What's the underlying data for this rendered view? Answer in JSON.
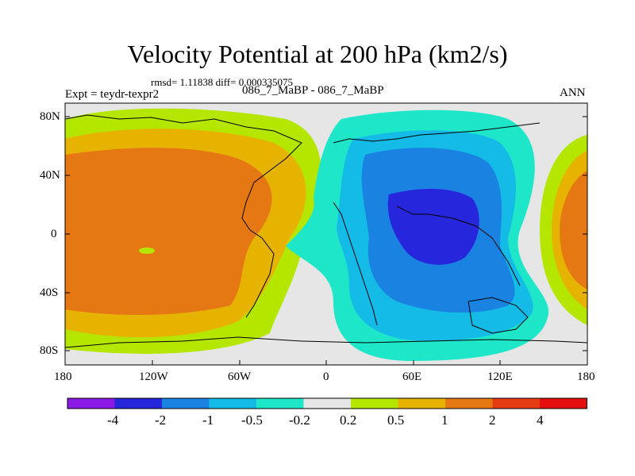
{
  "title": "Velocity Potential at 200 hPa (km2/s)",
  "stats": "rmsd= 1.11838 diff= 0.000335075",
  "expt_label": "Expt = teydr-texpr2",
  "expt_name": "086_7_MaBP - 086_7_MaBP",
  "season": "ANN",
  "lat_ticks": [
    "80N",
    "40N",
    "0",
    "40S",
    "80S"
  ],
  "lon_ticks": [
    "180",
    "120W",
    "60W",
    "0",
    "60E",
    "120E",
    "180"
  ],
  "colorbar": {
    "colors": [
      "#8c1ae6",
      "#2626dd",
      "#1a82e0",
      "#14bbe6",
      "#1ee6c8",
      "#e6e6e6",
      "#b4e600",
      "#e6b400",
      "#e67814",
      "#e63c14",
      "#e60f0f"
    ],
    "labels": [
      "-4",
      "-2",
      "-1",
      "-0.5",
      "-0.2",
      "0.2",
      "0.5",
      "1",
      "2",
      "4"
    ]
  },
  "colors": {
    "background": "#e6e6e6",
    "coastline": "#000000"
  }
}
